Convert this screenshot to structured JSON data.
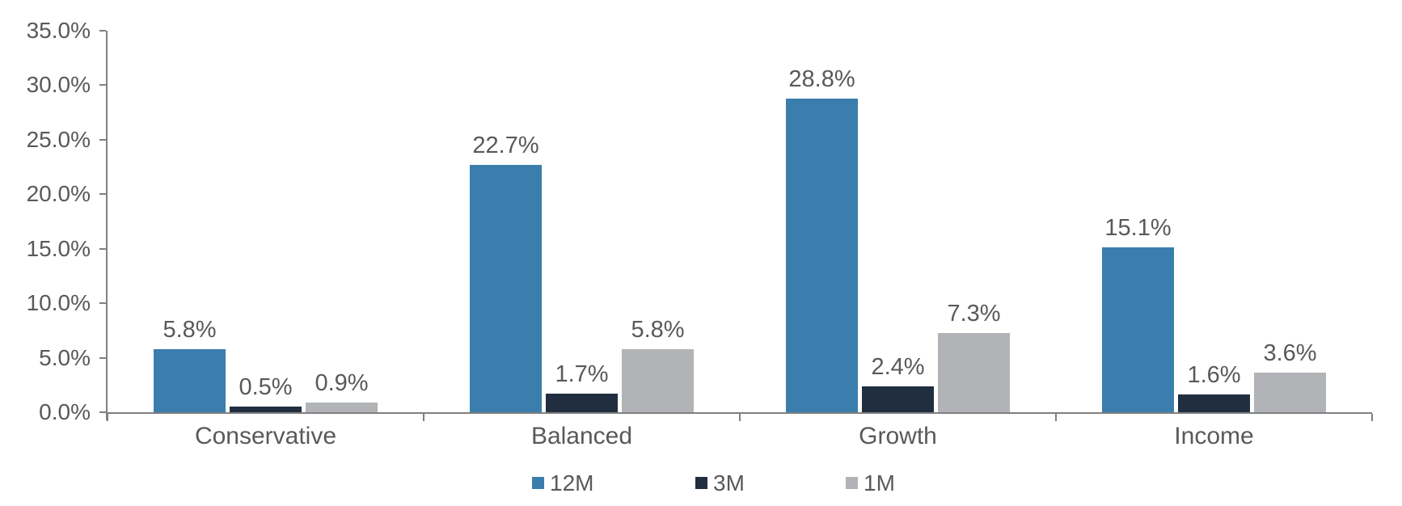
{
  "chart_data": {
    "type": "bar",
    "title": "",
    "xlabel": "",
    "ylabel": "",
    "categories": [
      "Conservative",
      "Balanced",
      "Growth",
      "Income"
    ],
    "series": [
      {
        "name": "12M",
        "color": "#3B7EAD",
        "values": [
          5.8,
          22.7,
          28.8,
          15.1
        ],
        "labels": [
          "5.8%",
          "22.7%",
          "28.8%",
          "15.1%"
        ]
      },
      {
        "name": "3M",
        "color": "#202E40",
        "values": [
          0.5,
          1.7,
          2.4,
          1.6
        ],
        "labels": [
          "0.5%",
          "1.7%",
          "2.4%",
          "1.6%"
        ]
      },
      {
        "name": "1M",
        "color": "#B1B3B6",
        "values": [
          0.9,
          5.8,
          7.3,
          3.6
        ],
        "labels": [
          "0.9%",
          "5.8%",
          "7.3%",
          "3.6%"
        ]
      }
    ],
    "y_axis": {
      "min": 0,
      "max": 35,
      "step": 5,
      "ticks": [
        "0.0%",
        "5.0%",
        "10.0%",
        "15.0%",
        "20.0%",
        "25.0%",
        "30.0%",
        "35.0%"
      ]
    },
    "legend": {
      "position": "bottom",
      "entries": [
        "12M",
        "3M",
        "1M"
      ]
    },
    "grid": false,
    "data_labels": true
  },
  "colors": {
    "background": "#FFFFFF",
    "axis": "#808080",
    "text": "#595959"
  }
}
